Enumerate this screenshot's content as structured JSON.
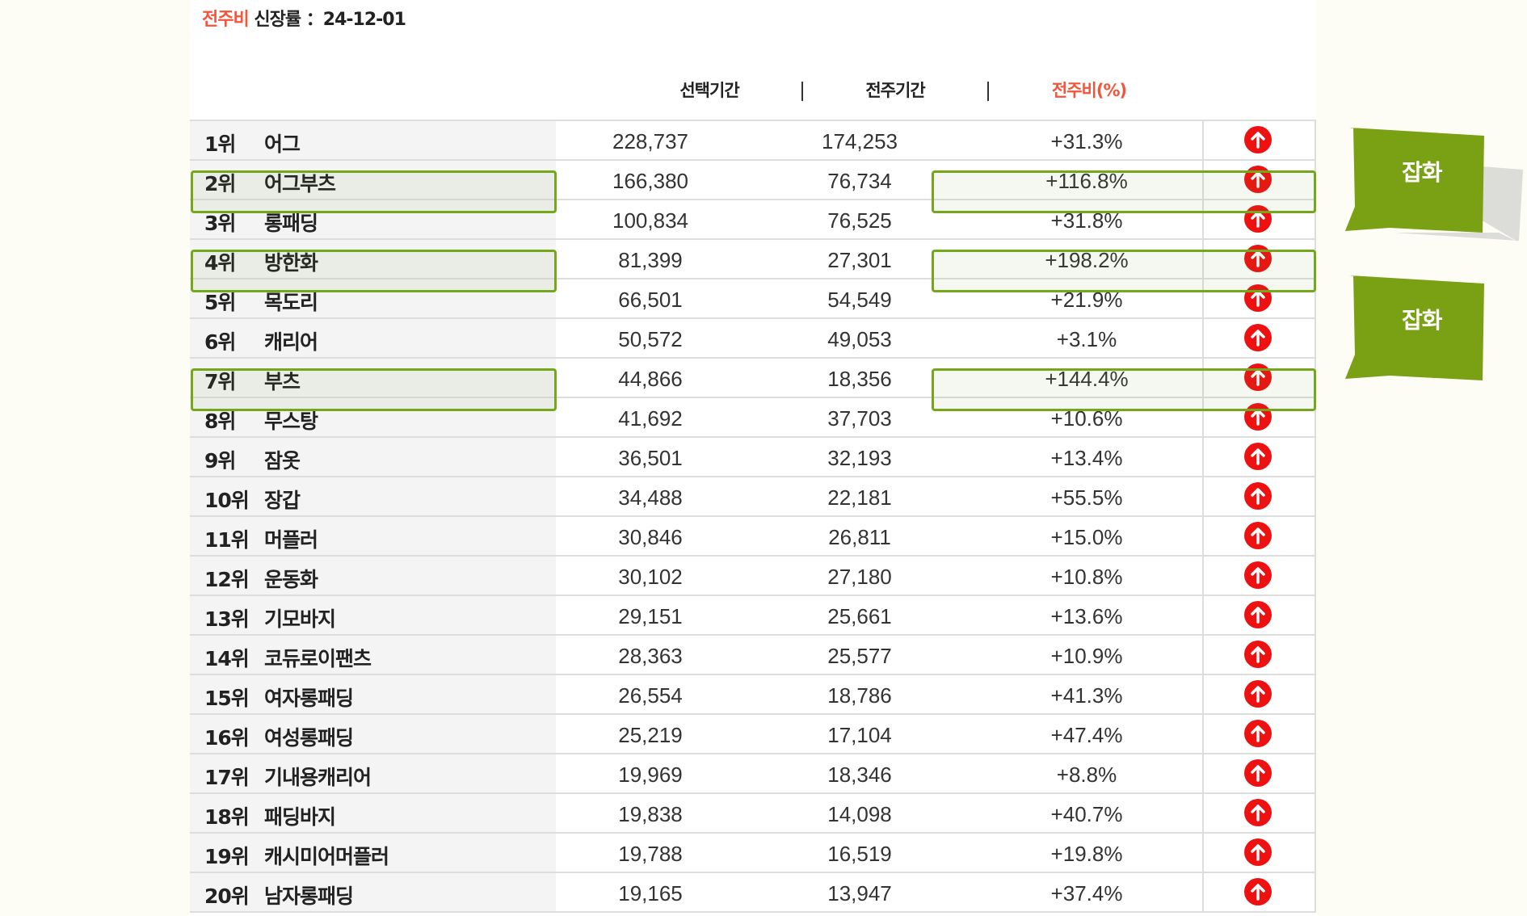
{
  "title": {
    "highlight": "전주비",
    "rest": " 신장률 ：24-12-01"
  },
  "headers": {
    "selected": "선택기간",
    "previous": "전주기간",
    "ratio": "전주비(%)"
  },
  "accent_red": "#f2553a",
  "highlight_green": "#74a81a",
  "callouts": [
    "잡화",
    "잡화"
  ],
  "rows": [
    {
      "rank": "1위",
      "name": "어그",
      "selected": "228,737",
      "previous": "174,253",
      "ratio": "+31.3%",
      "icon": "arrow-up-circle-icon"
    },
    {
      "rank": "2위",
      "name": "어그부츠",
      "selected": "166,380",
      "previous": "76,734",
      "ratio": "+116.8%",
      "icon": "arrow-up-circle-icon",
      "highlighted": true
    },
    {
      "rank": "3위",
      "name": "롱패딩",
      "selected": "100,834",
      "previous": "76,525",
      "ratio": "+31.8%",
      "icon": "arrow-up-circle-icon"
    },
    {
      "rank": "4위",
      "name": "방한화",
      "selected": "81,399",
      "previous": "27,301",
      "ratio": "+198.2%",
      "icon": "arrow-up-circle-icon",
      "highlighted": true
    },
    {
      "rank": "5위",
      "name": "목도리",
      "selected": "66,501",
      "previous": "54,549",
      "ratio": "+21.9%",
      "icon": "arrow-up-circle-icon"
    },
    {
      "rank": "6위",
      "name": "캐리어",
      "selected": "50,572",
      "previous": "49,053",
      "ratio": "+3.1%",
      "icon": "arrow-up-circle-icon"
    },
    {
      "rank": "7위",
      "name": "부츠",
      "selected": "44,866",
      "previous": "18,356",
      "ratio": "+144.4%",
      "icon": "arrow-up-circle-icon",
      "highlighted": true
    },
    {
      "rank": "8위",
      "name": "무스탕",
      "selected": "41,692",
      "previous": "37,703",
      "ratio": "+10.6%",
      "icon": "arrow-up-circle-icon"
    },
    {
      "rank": "9위",
      "name": "잠옷",
      "selected": "36,501",
      "previous": "32,193",
      "ratio": "+13.4%",
      "icon": "arrow-up-circle-icon"
    },
    {
      "rank": "10위",
      "name": "장갑",
      "selected": "34,488",
      "previous": "22,181",
      "ratio": "+55.5%",
      "icon": "arrow-up-circle-icon"
    },
    {
      "rank": "11위",
      "name": "머플러",
      "selected": "30,846",
      "previous": "26,811",
      "ratio": "+15.0%",
      "icon": "arrow-up-circle-icon"
    },
    {
      "rank": "12위",
      "name": "운동화",
      "selected": "30,102",
      "previous": "27,180",
      "ratio": "+10.8%",
      "icon": "arrow-up-circle-icon"
    },
    {
      "rank": "13위",
      "name": "기모바지",
      "selected": "29,151",
      "previous": "25,661",
      "ratio": "+13.6%",
      "icon": "arrow-up-circle-icon"
    },
    {
      "rank": "14위",
      "name": "코듀로이팬츠",
      "selected": "28,363",
      "previous": "25,577",
      "ratio": "+10.9%",
      "icon": "arrow-up-circle-icon"
    },
    {
      "rank": "15위",
      "name": "여자롱패딩",
      "selected": "26,554",
      "previous": "18,786",
      "ratio": "+41.3%",
      "icon": "arrow-up-circle-icon"
    },
    {
      "rank": "16위",
      "name": "여성롱패딩",
      "selected": "25,219",
      "previous": "17,104",
      "ratio": "+47.4%",
      "icon": "arrow-up-circle-icon"
    },
    {
      "rank": "17위",
      "name": "기내용캐리어",
      "selected": "19,969",
      "previous": "18,346",
      "ratio": "+8.8%",
      "icon": "arrow-up-circle-icon"
    },
    {
      "rank": "18위",
      "name": "패딩바지",
      "selected": "19,838",
      "previous": "14,098",
      "ratio": "+40.7%",
      "icon": "arrow-up-circle-icon"
    },
    {
      "rank": "19위",
      "name": "캐시미어머플러",
      "selected": "19,788",
      "previous": "16,519",
      "ratio": "+19.8%",
      "icon": "arrow-up-circle-icon"
    },
    {
      "rank": "20위",
      "name": "남자롱패딩",
      "selected": "19,165",
      "previous": "13,947",
      "ratio": "+37.4%",
      "icon": "arrow-up-circle-icon"
    }
  ]
}
